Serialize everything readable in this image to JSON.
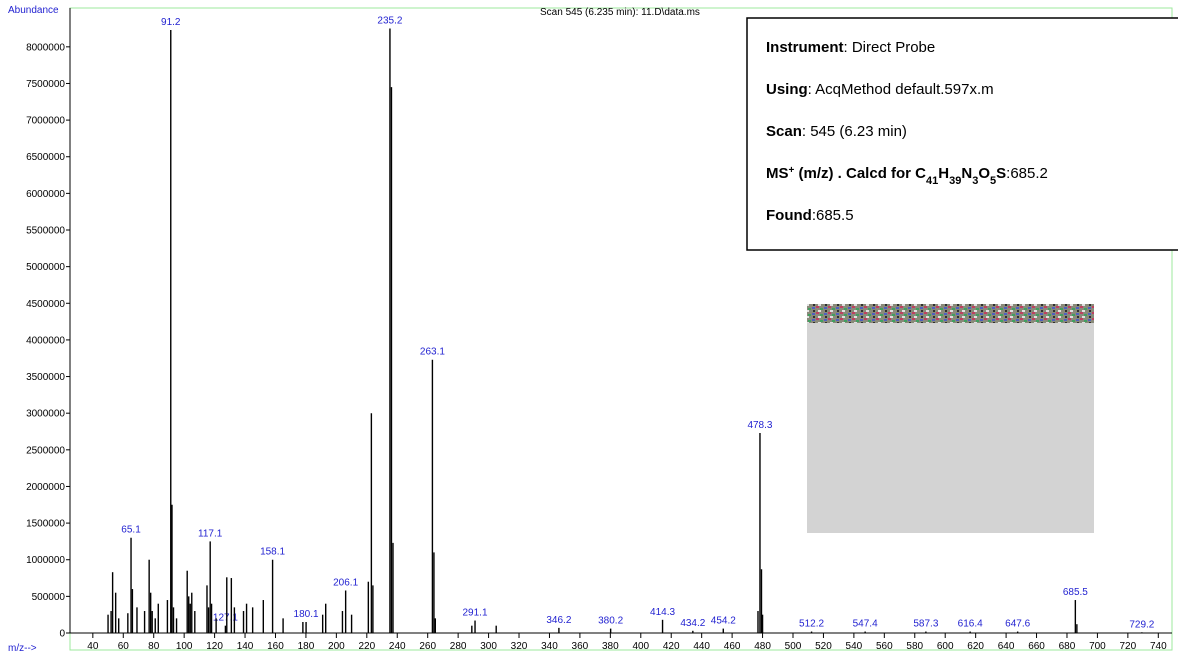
{
  "chart_data": {
    "type": "spectrum",
    "title": "Scan 545 (6.235 min): 11.D\\data.ms",
    "y_label": "Abundance",
    "x_label": "m/z-->",
    "xlim": [
      25,
      749
    ],
    "ylim": [
      0,
      8530000
    ],
    "xticks": [
      40,
      60,
      80,
      100,
      120,
      140,
      160,
      180,
      200,
      220,
      240,
      260,
      280,
      300,
      320,
      340,
      360,
      380,
      400,
      420,
      440,
      460,
      480,
      500,
      520,
      540,
      560,
      580,
      600,
      620,
      640,
      660,
      680,
      700,
      720,
      740
    ],
    "yticks": [
      0,
      500000,
      1000000,
      1500000,
      2000000,
      2500000,
      3000000,
      3500000,
      4000000,
      4500000,
      5000000,
      5500000,
      6000000,
      6500000,
      7000000,
      7500000,
      8000000
    ],
    "series": [
      {
        "color": "#000000",
        "label_color": "#1f1fd0",
        "show_labels": true,
        "x": [
          65.1,
          91.2,
          117.1,
          127.1,
          158.1,
          180.1,
          206.1,
          235.2,
          263.1,
          291.1,
          346.2,
          380.2,
          414.3,
          434.2,
          454.2,
          478.3,
          512.2,
          547.4,
          587.3,
          616.4,
          647.6,
          685.5,
          729.2
        ],
        "values": [
          1300000,
          8230000,
          1250000,
          100000,
          1000000,
          150000,
          580000,
          8250000,
          3730000,
          170000,
          70000,
          60000,
          180000,
          30000,
          60000,
          2730000,
          20000,
          20000,
          20000,
          20000,
          20000,
          450000,
          10000
        ]
      },
      {
        "color": "#000000",
        "show_labels": false,
        "x": [
          50,
          52,
          53,
          55,
          57,
          63,
          66,
          69,
          74,
          77,
          78,
          79,
          81,
          83,
          89,
          92,
          93,
          95,
          102,
          103,
          104,
          105,
          107,
          115,
          116,
          118,
          121,
          128,
          131,
          133,
          139,
          141,
          145,
          152,
          165,
          178,
          191,
          193,
          204,
          210,
          221,
          223,
          224,
          236.2,
          237.2,
          264.1,
          265,
          289,
          305,
          477,
          479.3,
          480,
          686.5
        ],
        "values": [
          250000,
          300000,
          830000,
          550000,
          200000,
          270000,
          600000,
          350000,
          300000,
          1000000,
          550000,
          300000,
          200000,
          400000,
          450000,
          1750000,
          350000,
          200000,
          850000,
          500000,
          400000,
          550000,
          300000,
          650000,
          350000,
          400000,
          200000,
          760000,
          750000,
          350000,
          300000,
          400000,
          350000,
          450000,
          200000,
          150000,
          250000,
          400000,
          300000,
          250000,
          700000,
          3000000,
          650000,
          7450000,
          1230000,
          1100000,
          200000,
          100000,
          100000,
          300000,
          870000,
          250000,
          120000
        ]
      }
    ]
  },
  "info_box": {
    "lines": [
      [
        {
          "text": "Instrument",
          "style": "b"
        },
        {
          "text": ": Direct Probe",
          "style": "n"
        }
      ],
      [
        {
          "text": "Using",
          "style": "b"
        },
        {
          "text": ": AcqMethod default.597x.m",
          "style": "n"
        }
      ],
      [
        {
          "text": "Scan",
          "style": "b"
        },
        {
          "text": ": 545 (6.23 min)",
          "style": "n"
        }
      ],
      [
        {
          "text": "MS",
          "style": "b"
        },
        {
          "text": "+",
          "style": "sup"
        },
        {
          "text": " (m/z) . Calcd for C",
          "style": "b"
        },
        {
          "text": "41",
          "style": "bsub"
        },
        {
          "text": "H",
          "style": "b"
        },
        {
          "text": "39",
          "style": "bsub"
        },
        {
          "text": "N",
          "style": "b"
        },
        {
          "text": "3",
          "style": "bsub"
        },
        {
          "text": "O",
          "style": "b"
        },
        {
          "text": "5",
          "style": "bsub"
        },
        {
          "text": "S",
          "style": "b"
        },
        {
          "text": ":685.2",
          "style": "n"
        }
      ],
      [
        {
          "text": "Found",
          "style": "b"
        },
        {
          "text": ":685.5",
          "style": "n"
        }
      ]
    ]
  }
}
